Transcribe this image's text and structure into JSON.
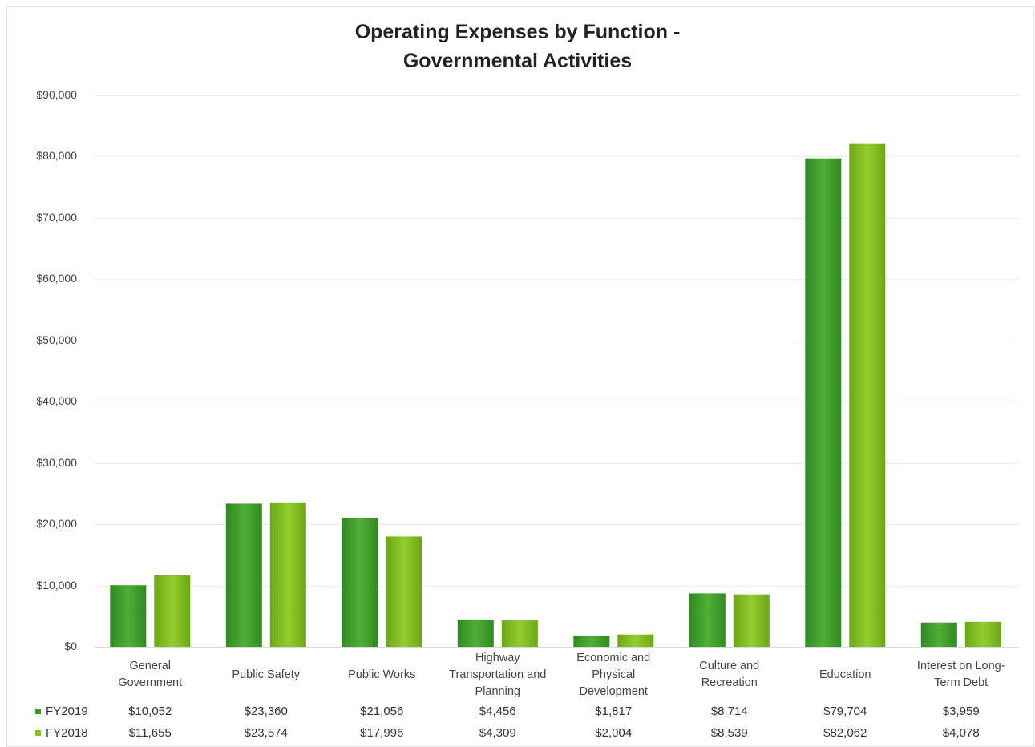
{
  "chart_data": {
    "type": "bar",
    "title": "Operating Expenses by Function -\nGovernmental Activities",
    "title_lines": [
      "Operating Expenses by Function -",
      "Governmental Activities"
    ],
    "categories": [
      [
        "General",
        "Government"
      ],
      [
        "Public Safety"
      ],
      [
        "Public Works"
      ],
      [
        "Highway",
        "Transportation and",
        "Planning"
      ],
      [
        "Economic and",
        "Physical",
        "Development"
      ],
      [
        "Culture and",
        "Recreation"
      ],
      [
        "Education"
      ],
      [
        "Interest on Long-",
        "Term Debt"
      ]
    ],
    "series": [
      {
        "name": "FY2019",
        "color": "#3d9a2a",
        "values": [
          10052,
          23360,
          21056,
          4456,
          1817,
          8714,
          79704,
          3959
        ],
        "labels": [
          "$10,052",
          "$23,360",
          "$21,056",
          "$4,456",
          "$1,817",
          "$8,714",
          "$79,704",
          "$3,959"
        ]
      },
      {
        "name": "FY2018",
        "color": "#7fbf1f",
        "values": [
          11655,
          23574,
          17996,
          4309,
          2004,
          8539,
          82062,
          4078
        ],
        "labels": [
          "$11,655",
          "$23,574",
          "$17,996",
          "$4,309",
          "$2,004",
          "$8,539",
          "$82,062",
          "$4,078"
        ]
      }
    ],
    "ylim": [
      0,
      90000
    ],
    "yticks": [
      0,
      10000,
      20000,
      30000,
      40000,
      50000,
      60000,
      70000,
      80000,
      90000
    ],
    "ytick_labels": [
      "$0",
      "$10,000",
      "$20,000",
      "$30,000",
      "$40,000",
      "$50,000",
      "$60,000",
      "$70,000",
      "$80,000",
      "$90,000"
    ],
    "xlabel": "",
    "ylabel": "",
    "grid": true,
    "legend": "data-table-left"
  }
}
